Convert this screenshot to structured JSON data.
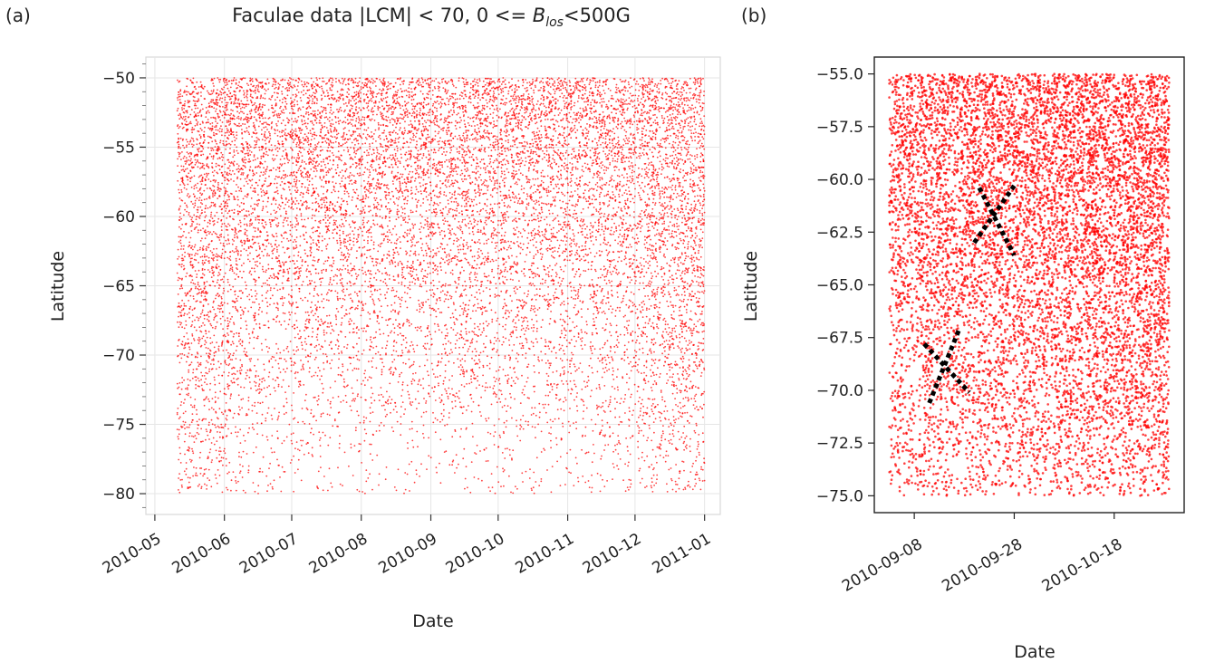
{
  "chart_data": [
    {
      "panel": "(a)",
      "type": "scatter",
      "title": "Faculae data |LCM| < 70, 0 <= ",
      "title_b": "B",
      "title_sub": "los",
      "title_end": "<500G",
      "xlabel": "Date",
      "ylabel": "Latitude",
      "xlim": [
        "2010-04-27",
        "2011-01-08"
      ],
      "ylim": [
        -81.5,
        -48.5
      ],
      "x_data_range": [
        "2010-05-11",
        "2011-01-01"
      ],
      "y_data_range": [
        -80,
        -50
      ],
      "xticks": [
        "2010-05",
        "2010-06",
        "2010-07",
        "2010-08",
        "2010-09",
        "2010-10",
        "2010-11",
        "2010-12",
        "2011-01"
      ],
      "xtick_dates": [
        "2010-05-01",
        "2010-06-01",
        "2010-07-01",
        "2010-08-01",
        "2010-09-01",
        "2010-10-01",
        "2010-11-01",
        "2010-12-01",
        "2011-01-01"
      ],
      "yticks": [
        -50,
        -55,
        -60,
        -65,
        -70,
        -75,
        -80
      ],
      "grid": true,
      "marker_color": "#ff0000",
      "point_count": 14000
    },
    {
      "panel": "(b)",
      "type": "scatter",
      "xlabel": "Date",
      "ylabel": "Latitude",
      "xlim": [
        "2010-08-31",
        "2010-11-01"
      ],
      "ylim": [
        -75.8,
        -54.2
      ],
      "x_data_range": [
        "2010-09-03",
        "2010-10-29"
      ],
      "y_data_range": [
        -75,
        -55
      ],
      "xticks": [
        "2010-09-08",
        "2010-09-28",
        "2010-10-18"
      ],
      "xtick_dates": [
        "2010-09-08",
        "2010-09-28",
        "2010-10-18"
      ],
      "yticks": [
        -55.0,
        -57.5,
        -60.0,
        -62.5,
        -65.0,
        -67.5,
        -70.0,
        -72.5,
        -75.0
      ],
      "ytick_labels": [
        "−55.0",
        "−57.5",
        "−60.0",
        "−62.5",
        "−65.0",
        "−67.5",
        "−70.0",
        "−72.5",
        "−75.0"
      ],
      "grid": false,
      "marker_color": "#ff0000",
      "point_count": 9000,
      "annotations": [
        {
          "type": "X-mark",
          "style": "dotted",
          "color": "#000000",
          "lines": [
            {
              "from": [
                "2010-09-21",
                -60.4
              ],
              "to": [
                "2010-09-28",
                -63.6
              ]
            },
            {
              "from": [
                "2010-09-20",
                -63.0
              ],
              "to": [
                "2010-09-28",
                -60.3
              ]
            }
          ]
        },
        {
          "type": "X-mark",
          "style": "dotted",
          "color": "#000000",
          "lines": [
            {
              "from": [
                "2010-09-10",
                -67.8
              ],
              "to": [
                "2010-09-19",
                -70.1
              ]
            },
            {
              "from": [
                "2010-09-11",
                -70.6
              ],
              "to": [
                "2010-09-17",
                -67.1
              ]
            }
          ]
        }
      ]
    }
  ]
}
